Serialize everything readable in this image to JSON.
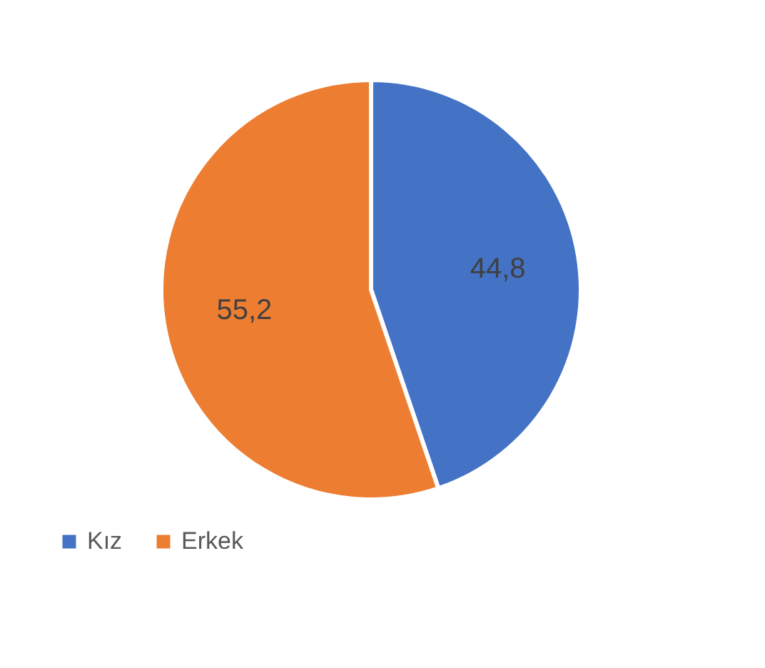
{
  "chart_data": {
    "type": "pie",
    "categories": [
      "Kız",
      "Erkek"
    ],
    "values": [
      44.8,
      55.2
    ],
    "colors": [
      "#4472c4",
      "#ed7d31"
    ],
    "value_labels": [
      "44,8",
      "55,2"
    ],
    "legend": "bottom"
  }
}
